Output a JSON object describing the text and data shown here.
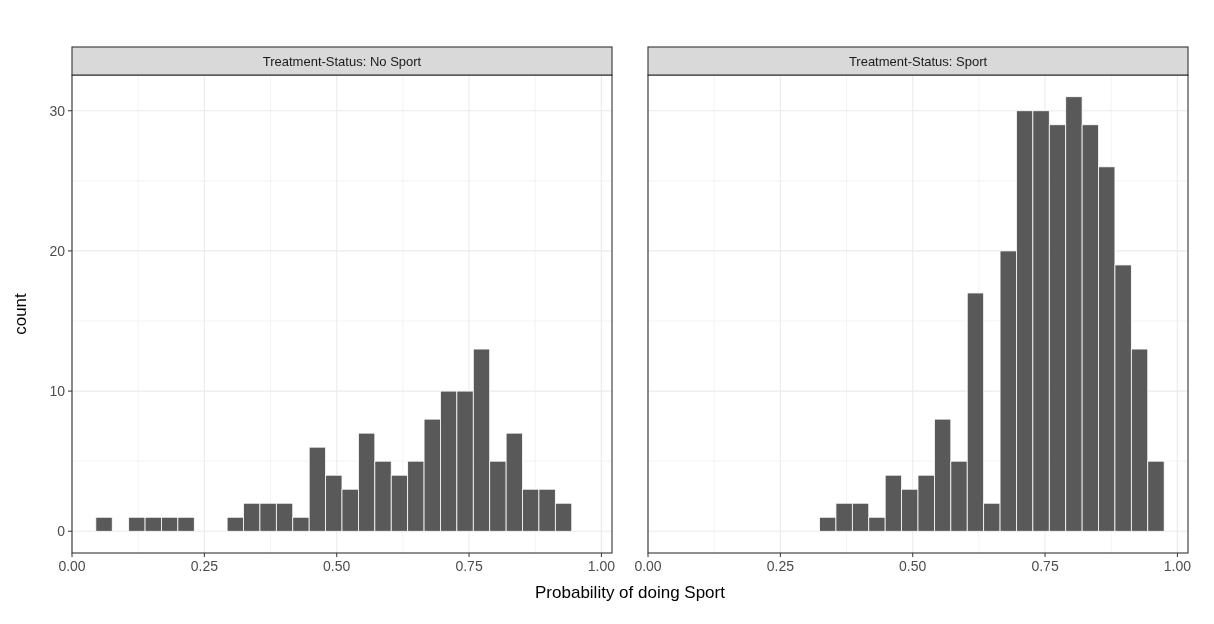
{
  "chart_data": [
    {
      "type": "histogram",
      "title": "Treatment-Status: No Sport",
      "xlabel": "Probability of doing Sport",
      "ylabel": "count",
      "color": "#595959",
      "bins": [
        0.045,
        0.076,
        0.107,
        0.138,
        0.169,
        0.2,
        0.231,
        0.262,
        0.293,
        0.324,
        0.355,
        0.386,
        0.417,
        0.448,
        0.479,
        0.51,
        0.541,
        0.572,
        0.603,
        0.634,
        0.665,
        0.696,
        0.727,
        0.758,
        0.789,
        0.82,
        0.851,
        0.882,
        0.913,
        0.944,
        0.975
      ],
      "values": [
        1,
        0,
        1,
        1,
        1,
        1,
        0,
        0,
        1,
        2,
        2,
        2,
        1,
        6,
        4,
        3,
        7,
        5,
        4,
        5,
        8,
        10,
        10,
        13,
        5,
        7,
        3,
        3,
        2,
        0
      ],
      "xlim": [
        0,
        1.02
      ],
      "ylim": [
        -1.55,
        32.55
      ],
      "xticks": [
        {
          "value": 0,
          "label": "0.00"
        },
        {
          "value": 0.125,
          "label": null
        },
        {
          "value": 0.25,
          "label": "0.25"
        },
        {
          "value": 0.375,
          "label": null
        },
        {
          "value": 0.5,
          "label": "0.50"
        },
        {
          "value": 0.625,
          "label": null
        },
        {
          "value": 0.75,
          "label": "0.75"
        },
        {
          "value": 0.875,
          "label": null
        },
        {
          "value": 1,
          "label": "1.00"
        }
      ],
      "yticks": [
        0,
        {
          "value": 5,
          "label": null
        },
        10,
        {
          "value": 15,
          "label": null
        },
        20,
        {
          "value": 25,
          "label": null
        },
        30
      ],
      "grid": true
    },
    {
      "type": "histogram",
      "title": "Treatment-Status: Sport",
      "color": "#595959",
      "bins": [
        0.045,
        0.076,
        0.107,
        0.138,
        0.169,
        0.2,
        0.231,
        0.262,
        0.293,
        0.324,
        0.355,
        0.386,
        0.417,
        0.448,
        0.479,
        0.51,
        0.541,
        0.572,
        0.603,
        0.634,
        0.665,
        0.696,
        0.727,
        0.758,
        0.789,
        0.82,
        0.851,
        0.882,
        0.913,
        0.944,
        0.975
      ],
      "values": [
        0,
        0,
        0,
        0,
        0,
        0,
        0,
        0,
        0,
        1,
        2,
        2,
        1,
        4,
        3,
        4,
        8,
        5,
        17,
        2,
        20,
        30,
        30,
        29,
        31,
        29,
        26,
        19,
        13,
        5
      ],
      "xlim": [
        0,
        1.02
      ],
      "ylim": [
        -1.55,
        32.55
      ],
      "xticks": [
        {
          "value": 0,
          "label": "0.00"
        },
        {
          "value": 0.125,
          "label": null
        },
        {
          "value": 0.25,
          "label": "0.25"
        },
        {
          "value": 0.375,
          "label": null
        },
        {
          "value": 0.5,
          "label": "0.50"
        },
        {
          "value": 0.625,
          "label": null
        },
        {
          "value": 0.75,
          "label": "0.75"
        },
        {
          "value": 0.875,
          "label": null
        },
        {
          "value": 1,
          "label": "1.00"
        }
      ],
      "yticks": [
        0,
        {
          "value": 5,
          "label": null
        },
        10,
        {
          "value": 15,
          "label": null
        },
        20,
        {
          "value": 25,
          "label": null
        },
        30
      ],
      "grid": true,
      "tick_labels": "x"
    }
  ]
}
